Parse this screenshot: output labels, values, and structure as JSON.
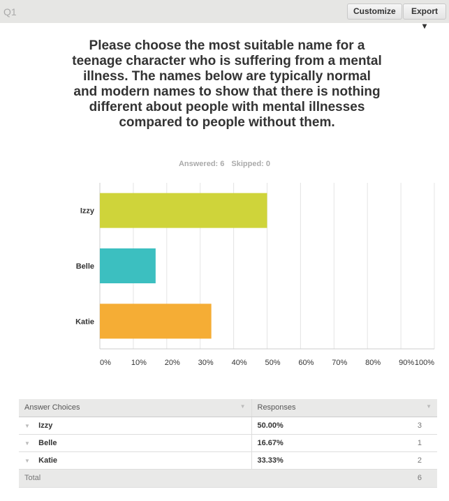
{
  "header": {
    "question_number": "Q1",
    "customize_label": "Customize",
    "export_label": "Export ▾"
  },
  "question": {
    "title": "Please choose the most suitable name for a teenage character who is suffering from a mental illness. The names below are typically normal and modern names to show that there is nothing different about people with mental illnesses compared to people without them.",
    "answered": "Answered: 6",
    "skipped": "Skipped: 0"
  },
  "chart_data": {
    "type": "bar",
    "orientation": "horizontal",
    "categories": [
      "Izzy",
      "Belle",
      "Katie"
    ],
    "values": [
      50,
      16.67,
      33.33
    ],
    "colors": [
      "#cfd43a",
      "#3cbfc0",
      "#f5ad35"
    ],
    "xlim": [
      0,
      100
    ],
    "x_ticks": [
      "0%",
      "10%",
      "20%",
      "30%",
      "40%",
      "50%",
      "60%",
      "70%",
      "80%",
      "90%",
      "100%"
    ],
    "grid": true
  },
  "table": {
    "headers": [
      "Answer Choices",
      "Responses"
    ],
    "rows": [
      {
        "choice": "Izzy",
        "percent": "50.00%",
        "count": "3"
      },
      {
        "choice": "Belle",
        "percent": "16.67%",
        "count": "1"
      },
      {
        "choice": "Katie",
        "percent": "33.33%",
        "count": "2"
      }
    ],
    "total_label": "Total",
    "total": "6"
  }
}
